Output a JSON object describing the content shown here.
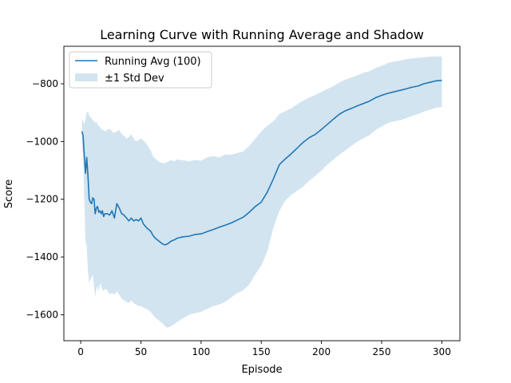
{
  "chart_data": {
    "type": "line",
    "title": "Learning Curve with Running Average and Shadow",
    "xlabel": "Episode",
    "ylabel": "Score",
    "xlim": [
      -14,
      315
    ],
    "ylim": [
      -1690,
      -670
    ],
    "xticks": [
      0,
      50,
      100,
      150,
      200,
      250,
      300
    ],
    "yticks": [
      -1600,
      -1400,
      -1200,
      -1000,
      -800
    ],
    "ytick_labels": [
      "−1600",
      "−1400",
      "−1200",
      "−1000",
      "−800"
    ],
    "grid": false,
    "legend_position": "upper left",
    "legend": [
      {
        "label": "Running Avg (100)",
        "kind": "line"
      },
      {
        "label": "±1 Std Dev",
        "kind": "patch"
      }
    ],
    "colors": {
      "line": "#1f77b4",
      "band": "#1f77b4",
      "band_opacity": 0.2
    },
    "series": [
      {
        "name": "Running Avg (100)",
        "x": [
          1,
          2,
          3,
          4,
          5,
          6,
          7,
          8,
          9,
          10,
          11,
          12,
          13,
          14,
          15,
          16,
          17,
          18,
          19,
          20,
          22,
          24,
          26,
          28,
          30,
          32,
          34,
          36,
          38,
          40,
          42,
          44,
          46,
          48,
          50,
          52,
          55,
          58,
          60,
          62,
          65,
          68,
          70,
          72,
          75,
          78,
          80,
          85,
          90,
          95,
          100,
          105,
          110,
          115,
          120,
          125,
          130,
          135,
          140,
          145,
          150,
          155,
          160,
          165,
          170,
          175,
          180,
          185,
          190,
          195,
          200,
          205,
          210,
          215,
          220,
          225,
          230,
          235,
          240,
          245,
          250,
          255,
          260,
          265,
          270,
          275,
          280,
          285,
          290,
          295,
          300
        ],
        "values": [
          -965,
          -980,
          -1050,
          -1110,
          -1055,
          -1120,
          -1200,
          -1210,
          -1215,
          -1195,
          -1200,
          -1250,
          -1230,
          -1225,
          -1245,
          -1240,
          -1250,
          -1240,
          -1260,
          -1250,
          -1250,
          -1255,
          -1240,
          -1265,
          -1215,
          -1230,
          -1250,
          -1255,
          -1265,
          -1275,
          -1265,
          -1275,
          -1270,
          -1275,
          -1265,
          -1285,
          -1300,
          -1310,
          -1325,
          -1335,
          -1345,
          -1355,
          -1358,
          -1355,
          -1345,
          -1340,
          -1335,
          -1330,
          -1328,
          -1322,
          -1320,
          -1312,
          -1305,
          -1297,
          -1290,
          -1282,
          -1272,
          -1262,
          -1245,
          -1225,
          -1210,
          -1175,
          -1130,
          -1080,
          -1060,
          -1042,
          -1022,
          -1002,
          -986,
          -975,
          -958,
          -940,
          -922,
          -905,
          -893,
          -885,
          -876,
          -868,
          -860,
          -848,
          -840,
          -833,
          -828,
          -823,
          -818,
          -812,
          -808,
          -800,
          -795,
          -790,
          -788
        ],
        "band_upper": [
          -920,
          -930,
          -940,
          -920,
          -900,
          -895,
          -910,
          -915,
          -920,
          -925,
          -930,
          -935,
          -930,
          -940,
          -945,
          -950,
          -955,
          -960,
          -960,
          -965,
          -960,
          -955,
          -965,
          -970,
          -965,
          -960,
          -975,
          -980,
          -990,
          -985,
          -975,
          -990,
          -1000,
          -995,
          -990,
          -995,
          -1010,
          -1030,
          -1050,
          -1060,
          -1070,
          -1075,
          -1075,
          -1070,
          -1065,
          -1068,
          -1062,
          -1065,
          -1068,
          -1064,
          -1066,
          -1055,
          -1050,
          -1055,
          -1045,
          -1045,
          -1040,
          -1035,
          -1015,
          -990,
          -965,
          -945,
          -930,
          -905,
          -895,
          -885,
          -870,
          -858,
          -848,
          -838,
          -828,
          -818,
          -808,
          -795,
          -785,
          -778,
          -770,
          -762,
          -756,
          -745,
          -738,
          -728,
          -723,
          -720,
          -715,
          -712,
          -710,
          -708,
          -706,
          -705,
          -705
        ],
        "band_lower": [
          -1010,
          -1050,
          -1200,
          -1350,
          -1360,
          -1450,
          -1490,
          -1480,
          -1470,
          -1460,
          -1500,
          -1540,
          -1510,
          -1500,
          -1520,
          -1490,
          -1500,
          -1510,
          -1520,
          -1510,
          -1515,
          -1530,
          -1525,
          -1530,
          -1520,
          -1530,
          -1545,
          -1550,
          -1555,
          -1560,
          -1550,
          -1560,
          -1565,
          -1570,
          -1570,
          -1575,
          -1580,
          -1590,
          -1600,
          -1610,
          -1620,
          -1630,
          -1640,
          -1645,
          -1640,
          -1632,
          -1625,
          -1612,
          -1600,
          -1595,
          -1590,
          -1580,
          -1570,
          -1565,
          -1555,
          -1540,
          -1525,
          -1515,
          -1495,
          -1460,
          -1430,
          -1380,
          -1300,
          -1240,
          -1205,
          -1185,
          -1170,
          -1155,
          -1135,
          -1118,
          -1100,
          -1080,
          -1062,
          -1045,
          -1030,
          -1015,
          -1000,
          -988,
          -978,
          -960,
          -948,
          -936,
          -930,
          -926,
          -920,
          -912,
          -905,
          -896,
          -890,
          -883,
          -880
        ]
      }
    ]
  }
}
